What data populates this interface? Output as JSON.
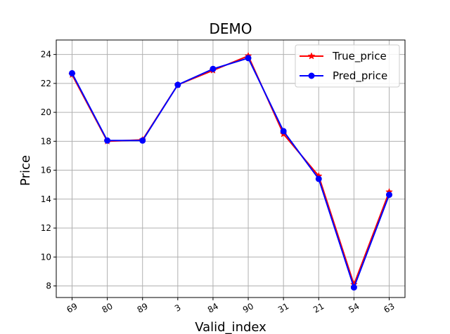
{
  "chart_data": {
    "type": "line",
    "title": "DEMO",
    "xlabel": "Valid_index",
    "ylabel": "Price",
    "categories": [
      "69",
      "80",
      "89",
      "3",
      "84",
      "90",
      "31",
      "21",
      "54",
      "63"
    ],
    "ylim": [
      7.2,
      25.0
    ],
    "yticks": [
      8,
      10,
      12,
      14,
      16,
      18,
      20,
      22,
      24
    ],
    "grid": true,
    "legend_position": "top-right",
    "series": [
      {
        "name": "True_price",
        "values": [
          22.6,
          18.0,
          18.1,
          21.9,
          22.9,
          23.9,
          18.5,
          15.6,
          8.1,
          14.5
        ],
        "color": "#ff0000",
        "marker": "star"
      },
      {
        "name": "Pred_price",
        "values": [
          22.7,
          18.05,
          18.05,
          21.9,
          23.0,
          23.75,
          18.7,
          15.4,
          7.9,
          14.3
        ],
        "color": "#0000ff",
        "marker": "circle"
      }
    ]
  }
}
